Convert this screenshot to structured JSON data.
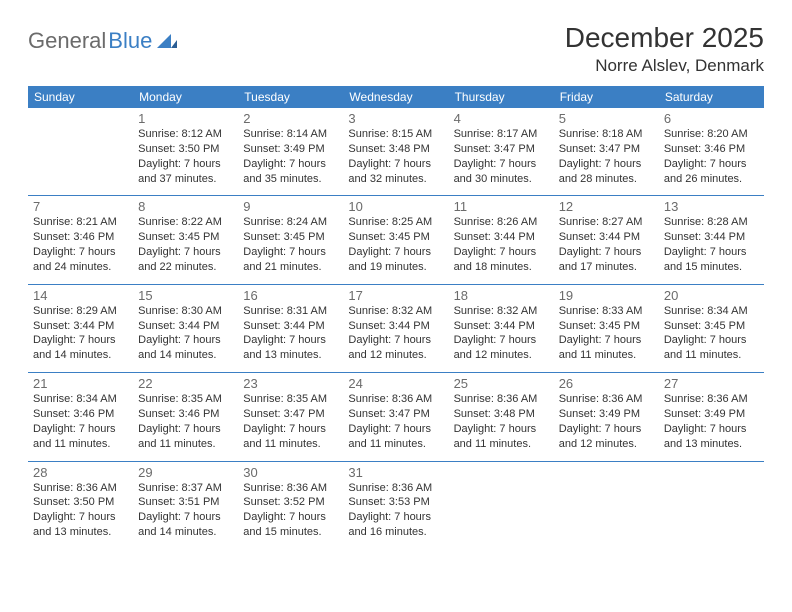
{
  "logo": {
    "text1": "General",
    "text2": "Blue"
  },
  "title": "December 2025",
  "location": "Norre Alslev, Denmark",
  "colors": {
    "header_bg": "#3b7fc4",
    "header_text": "#ffffff",
    "border": "#3b7fc4",
    "daynum": "#6b6b6b",
    "body_text": "#333333",
    "logo_gray": "#6b6b6b",
    "logo_blue": "#3b7fc4"
  },
  "weekdays": [
    "Sunday",
    "Monday",
    "Tuesday",
    "Wednesday",
    "Thursday",
    "Friday",
    "Saturday"
  ],
  "weeks": [
    [
      null,
      {
        "n": "1",
        "sr": "8:12 AM",
        "ss": "3:50 PM",
        "dl": "7 hours and 37 minutes."
      },
      {
        "n": "2",
        "sr": "8:14 AM",
        "ss": "3:49 PM",
        "dl": "7 hours and 35 minutes."
      },
      {
        "n": "3",
        "sr": "8:15 AM",
        "ss": "3:48 PM",
        "dl": "7 hours and 32 minutes."
      },
      {
        "n": "4",
        "sr": "8:17 AM",
        "ss": "3:47 PM",
        "dl": "7 hours and 30 minutes."
      },
      {
        "n": "5",
        "sr": "8:18 AM",
        "ss": "3:47 PM",
        "dl": "7 hours and 28 minutes."
      },
      {
        "n": "6",
        "sr": "8:20 AM",
        "ss": "3:46 PM",
        "dl": "7 hours and 26 minutes."
      }
    ],
    [
      {
        "n": "7",
        "sr": "8:21 AM",
        "ss": "3:46 PM",
        "dl": "7 hours and 24 minutes."
      },
      {
        "n": "8",
        "sr": "8:22 AM",
        "ss": "3:45 PM",
        "dl": "7 hours and 22 minutes."
      },
      {
        "n": "9",
        "sr": "8:24 AM",
        "ss": "3:45 PM",
        "dl": "7 hours and 21 minutes."
      },
      {
        "n": "10",
        "sr": "8:25 AM",
        "ss": "3:45 PM",
        "dl": "7 hours and 19 minutes."
      },
      {
        "n": "11",
        "sr": "8:26 AM",
        "ss": "3:44 PM",
        "dl": "7 hours and 18 minutes."
      },
      {
        "n": "12",
        "sr": "8:27 AM",
        "ss": "3:44 PM",
        "dl": "7 hours and 17 minutes."
      },
      {
        "n": "13",
        "sr": "8:28 AM",
        "ss": "3:44 PM",
        "dl": "7 hours and 15 minutes."
      }
    ],
    [
      {
        "n": "14",
        "sr": "8:29 AM",
        "ss": "3:44 PM",
        "dl": "7 hours and 14 minutes."
      },
      {
        "n": "15",
        "sr": "8:30 AM",
        "ss": "3:44 PM",
        "dl": "7 hours and 14 minutes."
      },
      {
        "n": "16",
        "sr": "8:31 AM",
        "ss": "3:44 PM",
        "dl": "7 hours and 13 minutes."
      },
      {
        "n": "17",
        "sr": "8:32 AM",
        "ss": "3:44 PM",
        "dl": "7 hours and 12 minutes."
      },
      {
        "n": "18",
        "sr": "8:32 AM",
        "ss": "3:44 PM",
        "dl": "7 hours and 12 minutes."
      },
      {
        "n": "19",
        "sr": "8:33 AM",
        "ss": "3:45 PM",
        "dl": "7 hours and 11 minutes."
      },
      {
        "n": "20",
        "sr": "8:34 AM",
        "ss": "3:45 PM",
        "dl": "7 hours and 11 minutes."
      }
    ],
    [
      {
        "n": "21",
        "sr": "8:34 AM",
        "ss": "3:46 PM",
        "dl": "7 hours and 11 minutes."
      },
      {
        "n": "22",
        "sr": "8:35 AM",
        "ss": "3:46 PM",
        "dl": "7 hours and 11 minutes."
      },
      {
        "n": "23",
        "sr": "8:35 AM",
        "ss": "3:47 PM",
        "dl": "7 hours and 11 minutes."
      },
      {
        "n": "24",
        "sr": "8:36 AM",
        "ss": "3:47 PM",
        "dl": "7 hours and 11 minutes."
      },
      {
        "n": "25",
        "sr": "8:36 AM",
        "ss": "3:48 PM",
        "dl": "7 hours and 11 minutes."
      },
      {
        "n": "26",
        "sr": "8:36 AM",
        "ss": "3:49 PM",
        "dl": "7 hours and 12 minutes."
      },
      {
        "n": "27",
        "sr": "8:36 AM",
        "ss": "3:49 PM",
        "dl": "7 hours and 13 minutes."
      }
    ],
    [
      {
        "n": "28",
        "sr": "8:36 AM",
        "ss": "3:50 PM",
        "dl": "7 hours and 13 minutes."
      },
      {
        "n": "29",
        "sr": "8:37 AM",
        "ss": "3:51 PM",
        "dl": "7 hours and 14 minutes."
      },
      {
        "n": "30",
        "sr": "8:36 AM",
        "ss": "3:52 PM",
        "dl": "7 hours and 15 minutes."
      },
      {
        "n": "31",
        "sr": "8:36 AM",
        "ss": "3:53 PM",
        "dl": "7 hours and 16 minutes."
      },
      null,
      null,
      null
    ]
  ],
  "labels": {
    "sunrise": "Sunrise:",
    "sunset": "Sunset:",
    "daylight": "Daylight:"
  }
}
